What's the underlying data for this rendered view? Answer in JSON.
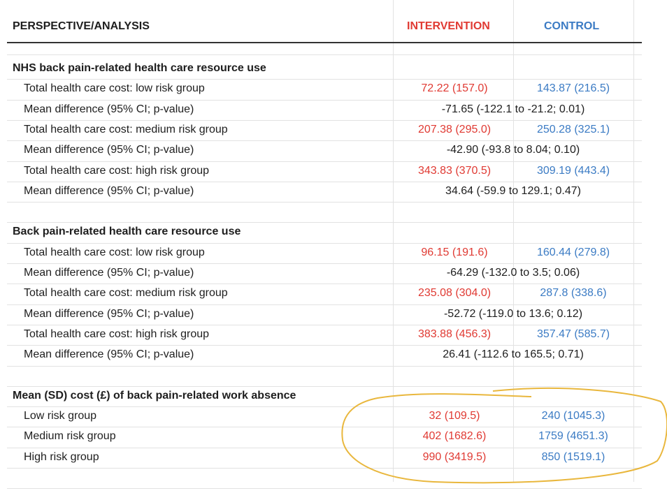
{
  "table": {
    "header": [
      "PERSPECTIVE/ANALYSIS",
      "INTERVENTION",
      "CONTROL"
    ],
    "sections": [
      {
        "title": "NHS back pain-related health care resource use",
        "rows": [
          {
            "label": "Total health care cost: low risk group",
            "intervention": "72.22 (157.0)",
            "control": "143.87 (216.5)"
          },
          {
            "label": "Mean difference (95% CI; p-value)",
            "difference": "-71.65 (-122.1 to -21.2; 0.01)"
          },
          {
            "label": "Total health care cost: medium risk group",
            "intervention": "207.38 (295.0)",
            "control": "250.28 (325.1)"
          },
          {
            "label": "Mean difference (95% CI; p-value)",
            "difference": "-42.90 (-93.8 to 8.04; 0.10)"
          },
          {
            "label": "Total health care cost: high risk group",
            "intervention": "343.83 (370.5)",
            "control": "309.19 (443.4)"
          },
          {
            "label": "Mean difference (95% CI; p-value)",
            "difference": "34.64 (-59.9 to 129.1; 0.47)"
          }
        ]
      },
      {
        "title": "Back pain-related health care resource use",
        "rows": [
          {
            "label": "Total health care cost: low risk group",
            "intervention": "96.15 (191.6)",
            "control": "160.44 (279.8)"
          },
          {
            "label": "Mean difference (95% CI; p-value)",
            "difference": "-64.29 (-132.0 to 3.5; 0.06)"
          },
          {
            "label": "Total health care cost: medium risk group",
            "intervention": "235.08 (304.0)",
            "control": "287.8 (338.6)"
          },
          {
            "label": "Mean difference (95% CI; p-value)",
            "difference": "-52.72 (-119.0 to 13.6; 0.12)"
          },
          {
            "label": "Total health care cost: high risk group",
            "intervention": "383.88 (456.3)",
            "control": "357.47 (585.7)"
          },
          {
            "label": "Mean difference (95% CI; p-value)",
            "difference": "26.41 (-112.6 to 165.5; 0.71)"
          }
        ]
      },
      {
        "title": "Mean (SD) cost (£) of back pain-related work absence",
        "rows": [
          {
            "label": "Low risk group",
            "intervention": "32 (109.5)",
            "control": "240 (1045.3)"
          },
          {
            "label": "Medium risk group",
            "intervention": "402 (1682.6)",
            "control": "1759 (4651.3)"
          },
          {
            "label": "High risk group",
            "intervention": "990 (3419.5)",
            "control": "850 (1519.1)"
          }
        ]
      }
    ]
  }
}
